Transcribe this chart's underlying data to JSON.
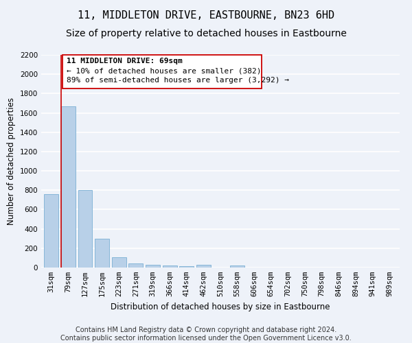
{
  "title": "11, MIDDLETON DRIVE, EASTBOURNE, BN23 6HD",
  "subtitle": "Size of property relative to detached houses in Eastbourne",
  "xlabel": "Distribution of detached houses by size in Eastbourne",
  "ylabel": "Number of detached properties",
  "categories": [
    "31sqm",
    "79sqm",
    "127sqm",
    "175sqm",
    "223sqm",
    "271sqm",
    "319sqm",
    "366sqm",
    "414sqm",
    "462sqm",
    "510sqm",
    "558sqm",
    "606sqm",
    "654sqm",
    "702sqm",
    "750sqm",
    "798sqm",
    "846sqm",
    "894sqm",
    "941sqm",
    "989sqm"
  ],
  "values": [
    760,
    1665,
    800,
    295,
    110,
    42,
    28,
    20,
    17,
    25,
    0,
    22,
    0,
    0,
    0,
    0,
    0,
    0,
    0,
    0,
    0
  ],
  "bar_color": "#b8d0e8",
  "bar_edge_color": "#7aafd4",
  "annotation_line_color": "#cc0000",
  "annotation_box_color": "#cc0000",
  "ylim": [
    0,
    2200
  ],
  "yticks": [
    0,
    200,
    400,
    600,
    800,
    1000,
    1200,
    1400,
    1600,
    1800,
    2000,
    2200
  ],
  "property_bin_index": 1,
  "annotation_text_line1": "11 MIDDLETON DRIVE: 69sqm",
  "annotation_text_line2": "← 10% of detached houses are smaller (382)",
  "annotation_text_line3": "89% of semi-detached houses are larger (3,292) →",
  "footer_line1": "Contains HM Land Registry data © Crown copyright and database right 2024.",
  "footer_line2": "Contains public sector information licensed under the Open Government Licence v3.0.",
  "background_color": "#eef2f9",
  "plot_background_color": "#eef2f9",
  "grid_color": "#ffffff",
  "title_fontsize": 11,
  "subtitle_fontsize": 10,
  "axis_label_fontsize": 8.5,
  "tick_fontsize": 7.5,
  "annotation_fontsize": 8,
  "footer_fontsize": 7
}
